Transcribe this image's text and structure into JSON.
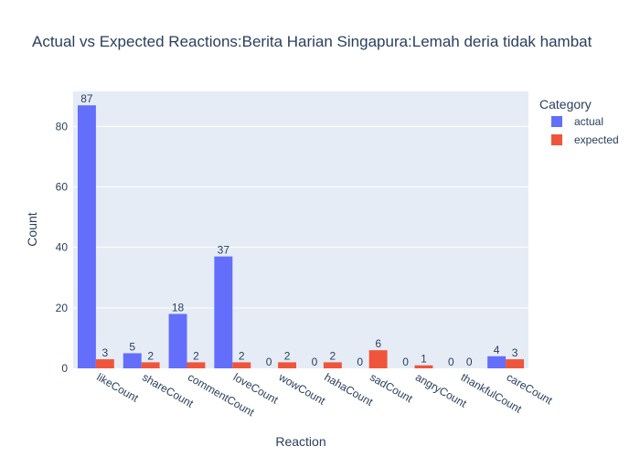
{
  "chart_data": {
    "type": "bar",
    "title": "Actual vs Expected Reactions:Berita Harian Singapura:Lemah deria tidak hambat",
    "xlabel": "Reaction",
    "ylabel": "Count",
    "categories": [
      "likeCount",
      "shareCount",
      "commentCount",
      "loveCount",
      "wowCount",
      "hahaCount",
      "sadCount",
      "angryCount",
      "thankfulCount",
      "careCount"
    ],
    "series": [
      {
        "name": "actual",
        "values": [
          87,
          5,
          18,
          37,
          0,
          0,
          0,
          0,
          0,
          4
        ],
        "color": "#636efa"
      },
      {
        "name": "expected",
        "values": [
          3,
          2,
          2,
          2,
          2,
          2,
          6,
          1,
          0,
          3
        ],
        "color": "#ef553b"
      }
    ],
    "ylim": [
      0,
      91.6
    ],
    "yticks": [
      0,
      20,
      40,
      60,
      80
    ],
    "grid": true,
    "legend": {
      "title": "Category",
      "placement": "right"
    },
    "plot_background": "#e5ecf6"
  }
}
